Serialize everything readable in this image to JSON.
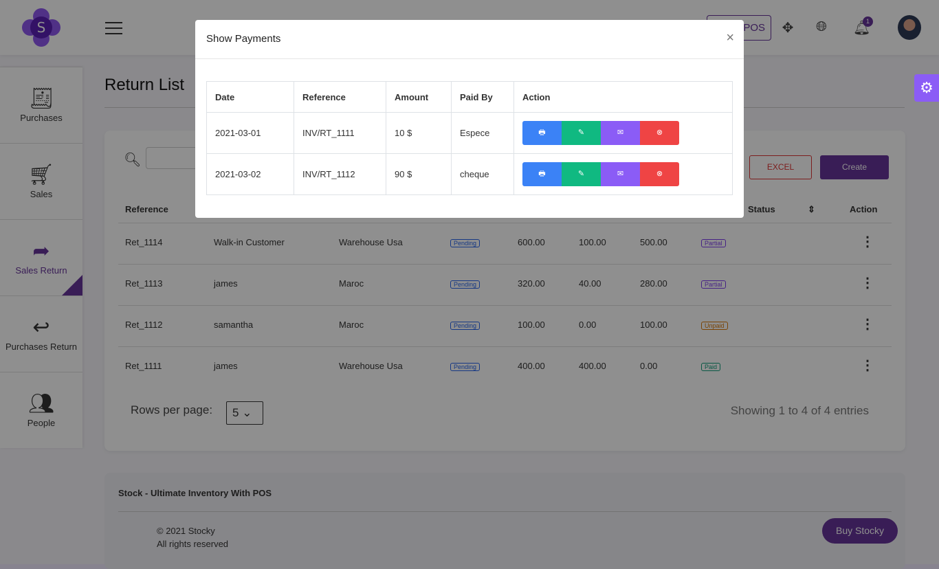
{
  "header": {
    "pos_label": "POS",
    "notification_count": "1"
  },
  "sidebar": {
    "items": [
      {
        "label": "Purchases",
        "icon": "receipt-icon"
      },
      {
        "label": "Sales",
        "icon": "cart-icon"
      },
      {
        "label": "Sales Return",
        "icon": "share-icon",
        "active": true
      },
      {
        "label": "Purchases Return",
        "icon": "reply-icon"
      },
      {
        "label": "People",
        "icon": "users-icon"
      }
    ]
  },
  "page": {
    "title": "Return List"
  },
  "toolbar": {
    "excel": "EXCEL",
    "create": "Create"
  },
  "table": {
    "headers": {
      "reference": "Reference",
      "status": "Status",
      "action": "Action"
    },
    "rows": [
      {
        "ref": "Ret_1114",
        "customer": "Walk-in Customer",
        "warehouse": "Warehouse Usa",
        "status": "Pending",
        "total": "600.00",
        "paid": "100.00",
        "due": "500.00",
        "payment_status": "Partial"
      },
      {
        "ref": "Ret_1113",
        "customer": "james",
        "warehouse": "Maroc",
        "status": "Pending",
        "total": "320.00",
        "paid": "40.00",
        "due": "280.00",
        "payment_status": "Partial"
      },
      {
        "ref": "Ret_1112",
        "customer": "samantha",
        "warehouse": "Maroc",
        "status": "Pending",
        "total": "100.00",
        "paid": "0.00",
        "due": "100.00",
        "payment_status": "Unpaid"
      },
      {
        "ref": "Ret_1111",
        "customer": "james",
        "warehouse": "Warehouse Usa",
        "status": "Pending",
        "total": "400.00",
        "paid": "400.00",
        "due": "0.00",
        "payment_status": "Paid"
      }
    ]
  },
  "pagination": {
    "rows_per_page_label": "Rows per page:",
    "rows_per_page": "5",
    "showing": "Showing 1 to 4 of 4 entries"
  },
  "footer": {
    "title": "Stock - Ultimate Inventory With POS",
    "copyright": "© 2021 Stocky",
    "rights": "All rights reserved",
    "buy": "Buy Stocky"
  },
  "modal": {
    "title": "Show Payments",
    "close": "×",
    "headers": [
      "Date",
      "Reference",
      "Amount",
      "Paid By",
      "Action"
    ],
    "rows": [
      {
        "date": "2021-03-01",
        "ref": "INV/RT_1111",
        "amount": "10 $",
        "paid_by": "Espece"
      },
      {
        "date": "2021-03-02",
        "ref": "INV/RT_1112",
        "amount": "90 $",
        "paid_by": "cheque"
      }
    ]
  },
  "colors": {
    "brand": "#663399",
    "print": "#3b82f6",
    "edit": "#10b981",
    "email": "#8b5cf6",
    "delete": "#ef4444"
  }
}
